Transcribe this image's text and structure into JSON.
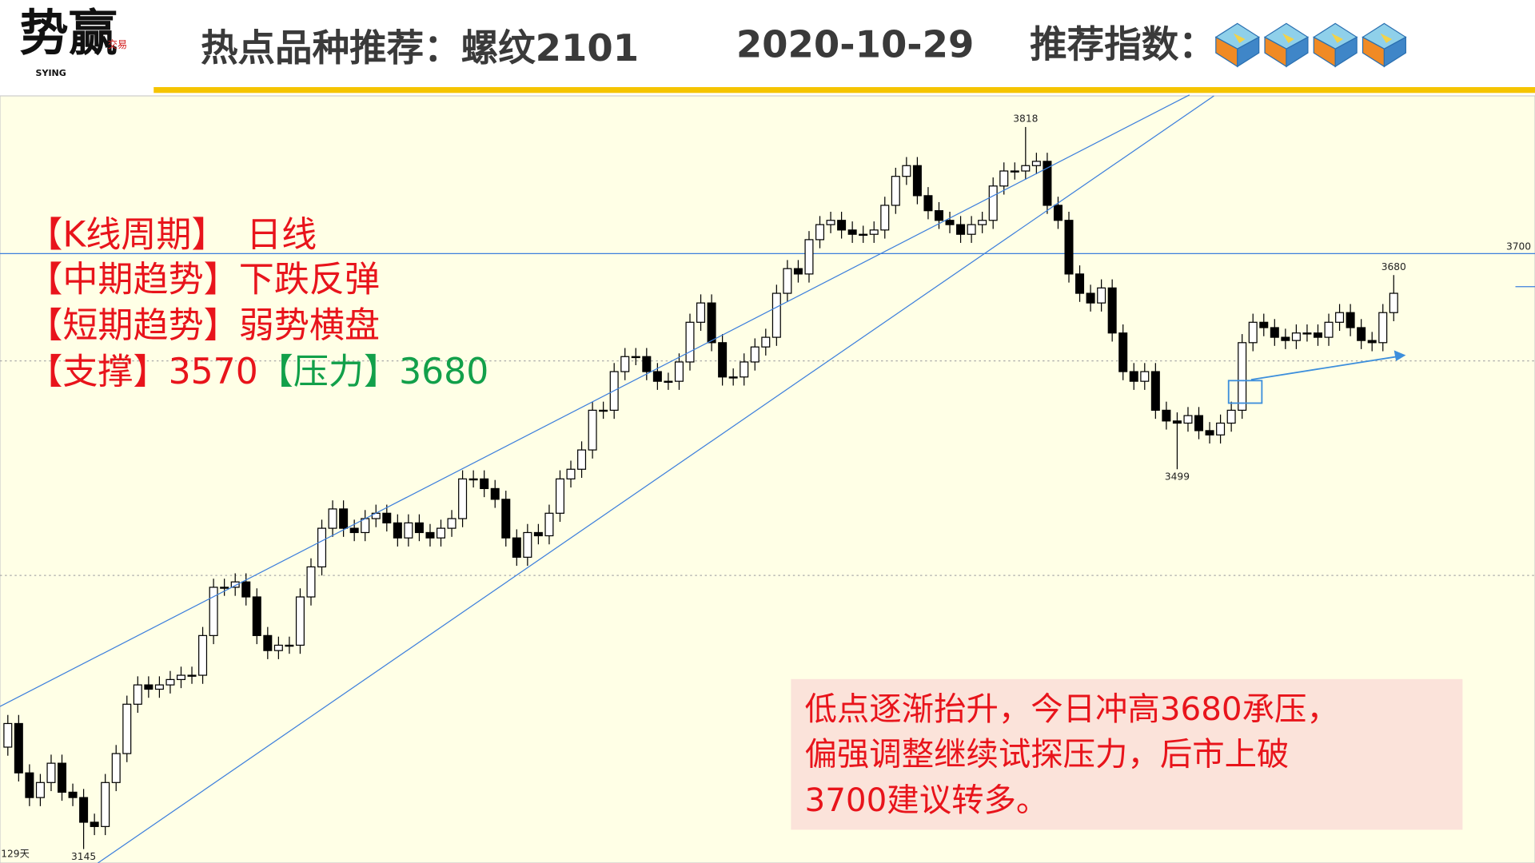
{
  "header": {
    "logo": "势赢",
    "logo_en": "SYING",
    "logo_seal": "交易",
    "title": "热点品种推荐：螺纹2101",
    "date": "2020-10-29",
    "rating_label": "推荐指数：",
    "rating": 4
  },
  "notes": [
    {
      "label": "【K线周期】",
      "value": "日线"
    },
    {
      "label": "【中期趋势】",
      "value": "下跌反弹"
    },
    {
      "label": "【短期趋势】",
      "value": "弱势横盘"
    }
  ],
  "levels": {
    "support_label": "【支撑】",
    "support": "3570",
    "pressure_label": "【压力】",
    "pressure": "3680"
  },
  "commentary": [
    "低点逐渐抬升，今日冲高3680承压，",
    "偏强调整继续试探压力，后市上破",
    "3700建议转多。"
  ],
  "chart_data": {
    "type": "candlestick",
    "period_label": "129天",
    "ylim": [
      3132,
      3847
    ],
    "gridlines": [
      3400,
      3600
    ],
    "hline": {
      "value": 3700,
      "label": "3700"
    },
    "peak_labels": [
      3818,
      3680
    ],
    "trough_labels": [
      3499,
      3145
    ],
    "up_color": "#ffffff",
    "down_color": "#000000",
    "ohlc": [
      [
        3240,
        3270,
        3232,
        3262
      ],
      [
        3262,
        3270,
        3208,
        3216
      ],
      [
        3216,
        3224,
        3185,
        3193
      ],
      [
        3193,
        3215,
        3185,
        3207
      ],
      [
        3207,
        3233,
        3199,
        3225
      ],
      [
        3225,
        3233,
        3190,
        3198
      ],
      [
        3198,
        3206,
        3185,
        3193
      ],
      [
        3193,
        3201,
        3145,
        3170
      ],
      [
        3170,
        3178,
        3158,
        3166
      ],
      [
        3166,
        3215,
        3158,
        3207
      ],
      [
        3207,
        3242,
        3199,
        3234
      ],
      [
        3234,
        3288,
        3226,
        3280
      ],
      [
        3280,
        3306,
        3272,
        3298
      ],
      [
        3298,
        3306,
        3286,
        3294
      ],
      [
        3294,
        3306,
        3286,
        3298
      ],
      [
        3298,
        3311,
        3290,
        3303
      ],
      [
        3303,
        3315,
        3295,
        3307
      ],
      [
        3307,
        3315,
        3299,
        3307
      ],
      [
        3307,
        3352,
        3299,
        3344
      ],
      [
        3344,
        3397,
        3336,
        3389
      ],
      [
        3389,
        3397,
        3381,
        3389
      ],
      [
        3389,
        3402,
        3381,
        3394
      ],
      [
        3394,
        3402,
        3372,
        3380
      ],
      [
        3380,
        3388,
        3336,
        3344
      ],
      [
        3344,
        3352,
        3322,
        3330
      ],
      [
        3330,
        3343,
        3322,
        3335
      ],
      [
        3335,
        3343,
        3327,
        3335
      ],
      [
        3335,
        3388,
        3327,
        3380
      ],
      [
        3380,
        3416,
        3372,
        3408
      ],
      [
        3408,
        3452,
        3400,
        3444
      ],
      [
        3444,
        3470,
        3436,
        3462
      ],
      [
        3462,
        3470,
        3436,
        3444
      ],
      [
        3444,
        3452,
        3432,
        3440
      ],
      [
        3440,
        3461,
        3432,
        3453
      ],
      [
        3453,
        3466,
        3445,
        3458
      ],
      [
        3458,
        3466,
        3441,
        3449
      ],
      [
        3449,
        3457,
        3427,
        3435
      ],
      [
        3435,
        3457,
        3427,
        3449
      ],
      [
        3449,
        3457,
        3432,
        3440
      ],
      [
        3440,
        3448,
        3427,
        3435
      ],
      [
        3435,
        3452,
        3427,
        3444
      ],
      [
        3444,
        3461,
        3436,
        3453
      ],
      [
        3453,
        3498,
        3445,
        3490
      ],
      [
        3490,
        3498,
        3482,
        3490
      ],
      [
        3490,
        3498,
        3473,
        3481
      ],
      [
        3481,
        3489,
        3463,
        3471
      ],
      [
        3471,
        3479,
        3427,
        3435
      ],
      [
        3435,
        3443,
        3409,
        3417
      ],
      [
        3417,
        3448,
        3409,
        3440
      ],
      [
        3440,
        3448,
        3429,
        3437
      ],
      [
        3437,
        3466,
        3429,
        3458
      ],
      [
        3458,
        3498,
        3450,
        3490
      ],
      [
        3490,
        3507,
        3482,
        3499
      ],
      [
        3499,
        3525,
        3491,
        3517
      ],
      [
        3517,
        3562,
        3509,
        3554
      ],
      [
        3554,
        3562,
        3546,
        3554
      ],
      [
        3554,
        3598,
        3546,
        3590
      ],
      [
        3590,
        3612,
        3582,
        3604
      ],
      [
        3604,
        3612,
        3596,
        3604
      ],
      [
        3604,
        3612,
        3582,
        3590
      ],
      [
        3590,
        3598,
        3573,
        3581
      ],
      [
        3581,
        3589,
        3573,
        3581
      ],
      [
        3581,
        3607,
        3573,
        3599
      ],
      [
        3599,
        3644,
        3591,
        3636
      ],
      [
        3636,
        3662,
        3628,
        3654
      ],
      [
        3654,
        3662,
        3609,
        3617
      ],
      [
        3617,
        3625,
        3577,
        3585
      ],
      [
        3585,
        3593,
        3577,
        3585
      ],
      [
        3585,
        3607,
        3577,
        3599
      ],
      [
        3599,
        3621,
        3591,
        3613
      ],
      [
        3613,
        3630,
        3605,
        3622
      ],
      [
        3622,
        3671,
        3614,
        3663
      ],
      [
        3663,
        3694,
        3655,
        3686
      ],
      [
        3686,
        3694,
        3673,
        3681
      ],
      [
        3681,
        3721,
        3673,
        3713
      ],
      [
        3713,
        3735,
        3705,
        3727
      ],
      [
        3727,
        3739,
        3719,
        3731
      ],
      [
        3731,
        3739,
        3714,
        3722
      ],
      [
        3722,
        3730,
        3710,
        3718
      ],
      [
        3718,
        3726,
        3710,
        3718
      ],
      [
        3718,
        3730,
        3710,
        3722
      ],
      [
        3722,
        3753,
        3714,
        3745
      ],
      [
        3745,
        3780,
        3737,
        3772
      ],
      [
        3772,
        3790,
        3764,
        3782
      ],
      [
        3782,
        3790,
        3746,
        3754
      ],
      [
        3754,
        3762,
        3732,
        3740
      ],
      [
        3740,
        3748,
        3723,
        3731
      ],
      [
        3731,
        3739,
        3719,
        3727
      ],
      [
        3727,
        3735,
        3710,
        3718
      ],
      [
        3718,
        3735,
        3710,
        3727
      ],
      [
        3727,
        3739,
        3719,
        3731
      ],
      [
        3731,
        3771,
        3723,
        3763
      ],
      [
        3763,
        3785,
        3755,
        3777
      ],
      [
        3777,
        3785,
        3769,
        3777
      ],
      [
        3777,
        3818,
        3769,
        3782
      ],
      [
        3782,
        3794,
        3774,
        3786
      ],
      [
        3786,
        3794,
        3737,
        3745
      ],
      [
        3745,
        3753,
        3723,
        3731
      ],
      [
        3731,
        3739,
        3673,
        3681
      ],
      [
        3681,
        3689,
        3655,
        3663
      ],
      [
        3663,
        3671,
        3646,
        3654
      ],
      [
        3654,
        3676,
        3646,
        3668
      ],
      [
        3668,
        3676,
        3618,
        3626
      ],
      [
        3626,
        3634,
        3582,
        3590
      ],
      [
        3590,
        3598,
        3573,
        3581
      ],
      [
        3581,
        3598,
        3573,
        3590
      ],
      [
        3590,
        3598,
        3546,
        3554
      ],
      [
        3554,
        3562,
        3536,
        3544
      ],
      [
        3544,
        3552,
        3499,
        3542
      ],
      [
        3542,
        3557,
        3534,
        3549
      ],
      [
        3549,
        3557,
        3527,
        3535
      ],
      [
        3535,
        3543,
        3523,
        3531
      ],
      [
        3531,
        3550,
        3523,
        3542
      ],
      [
        3542,
        3562,
        3534,
        3554
      ],
      [
        3554,
        3625,
        3546,
        3617
      ],
      [
        3617,
        3644,
        3609,
        3636
      ],
      [
        3636,
        3644,
        3623,
        3631
      ],
      [
        3631,
        3639,
        3614,
        3622
      ],
      [
        3622,
        3630,
        3611,
        3619
      ],
      [
        3619,
        3634,
        3611,
        3626
      ],
      [
        3626,
        3634,
        3618,
        3626
      ],
      [
        3626,
        3634,
        3614,
        3622
      ],
      [
        3622,
        3644,
        3614,
        3636
      ],
      [
        3636,
        3653,
        3628,
        3645
      ],
      [
        3645,
        3653,
        3623,
        3631
      ],
      [
        3631,
        3639,
        3611,
        3619
      ],
      [
        3619,
        3627,
        3609,
        3617
      ],
      [
        3617,
        3653,
        3609,
        3645
      ],
      [
        3645,
        3680,
        3637,
        3663
      ]
    ]
  }
}
